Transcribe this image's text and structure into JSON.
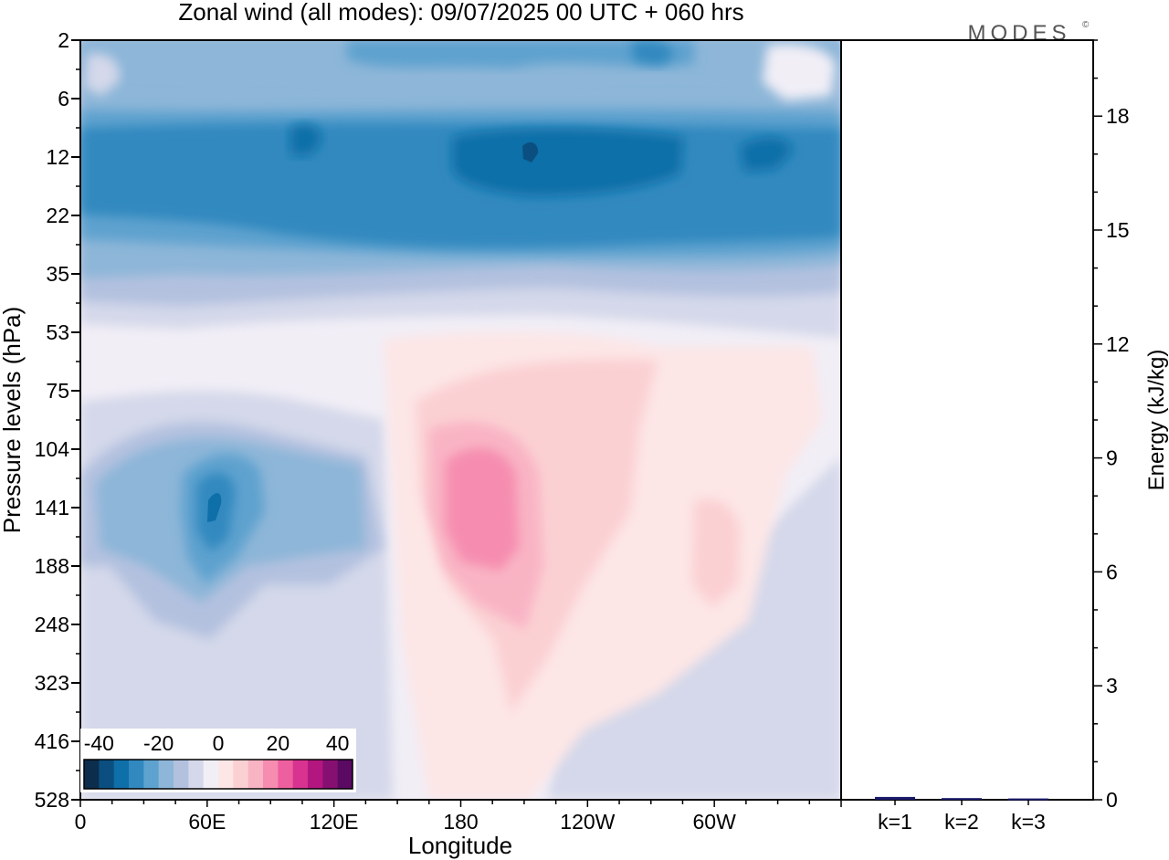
{
  "title": "Zonal wind (all modes):  09/07/2025  00 UTC  + 060 hrs",
  "logo_text": "MODES",
  "logo_mark": "©",
  "chart_data": [
    {
      "type": "heatmap",
      "title": "Zonal wind (all modes):  09/07/2025  00 UTC  + 060 hrs",
      "xlabel": "Longitude",
      "ylabel": "Pressure levels (hPa)",
      "x_ticks": [
        "0",
        "60E",
        "120E",
        "180",
        "120W",
        "60W"
      ],
      "x_tick_degrees": [
        0,
        60,
        120,
        180,
        240,
        300
      ],
      "y_ticks": [
        "2",
        "6",
        "12",
        "22",
        "35",
        "53",
        "75",
        "104",
        "141",
        "188",
        "248",
        "323",
        "416",
        "528"
      ],
      "y_axis_direction": "pressure increases downward",
      "colorbar": {
        "labels": [
          "-40",
          "-20",
          "0",
          "20",
          "40"
        ],
        "min": -45,
        "max": 45,
        "step": 5,
        "colors": [
          "#0d2d4c",
          "#0b4f80",
          "#0f6fa8",
          "#3189bf",
          "#5ea2cf",
          "#8db6d8",
          "#b3c1df",
          "#d4d8ea",
          "#f1eef6",
          "#fde6e6",
          "#fbd0d3",
          "#f9b4c4",
          "#f68db0",
          "#ee5f9f",
          "#d83390",
          "#b3167e",
          "#861071",
          "#5a0a63"
        ]
      },
      "features": [
        {
          "region": "stratosphere 6-35 hPa, all longitudes",
          "approx_value": -25
        },
        {
          "region": "jet core 12 hPa near 180-120W",
          "approx_value": -35
        },
        {
          "region": "upper troposphere 141 hPa near 60E",
          "approx_value": -30
        },
        {
          "region": "upper troposphere 141 hPa near 180",
          "approx_value": 15
        },
        {
          "region": "141 hPa near 60W",
          "approx_value": 5
        }
      ]
    },
    {
      "type": "bar",
      "ylabel": "Energy (kJ/kg)",
      "categories": [
        "k=1",
        "k=2",
        "k=3"
      ],
      "values": [
        0.05,
        0.02,
        0.01
      ],
      "ylim": [
        0,
        20
      ],
      "y_ticks": [
        "0",
        "3",
        "6",
        "9",
        "12",
        "15",
        "18"
      ],
      "bar_color": "#1b1b6b"
    }
  ]
}
